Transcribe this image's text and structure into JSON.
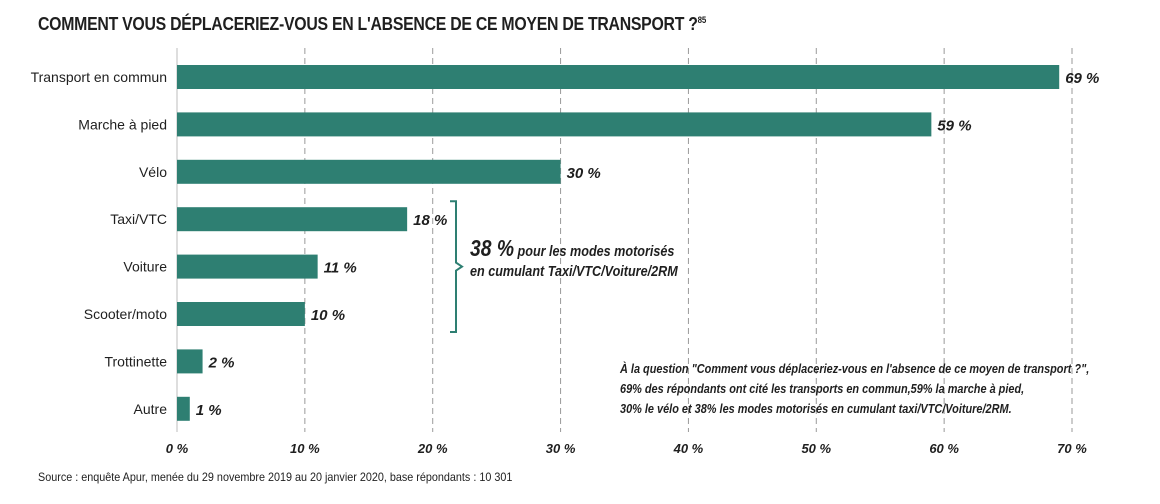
{
  "title": "COMMENT VOUS DÉPLACERIEZ-VOUS EN L'ABSENCE DE CE MOYEN DE TRANSPORT ?",
  "title_sup": "85",
  "callout": {
    "big": "38 %",
    "line1": "pour les modes motorisés",
    "line2": "en cumulant Taxi/VTC/Voiture/2RM"
  },
  "note": {
    "line1": "À la question \"Comment vous déplaceriez-vous en l'absence de ce moyen de transport ?\",",
    "line2": "69% des répondants ont cité les transports en commun,59% la marche à pied,",
    "line3": "30% le vélo et 38% les modes motorisés en cumulant taxi/VTC/Voiture/2RM."
  },
  "source": "Source : enquête Apur, menée du 29 novembre 2019 au 20 janvier 2020, base répondants : 10 301",
  "colors": {
    "bar": "#2e7f72",
    "grid": "#9a9a9a",
    "text": "#1f1f1f"
  },
  "chart_data": {
    "type": "bar",
    "orientation": "horizontal",
    "categories": [
      "Transport en commun",
      "Marche à pied",
      "Vélo",
      "Taxi/VTC",
      "Voiture",
      "Scooter/moto",
      "Trottinette",
      "Autre"
    ],
    "values": [
      69,
      59,
      30,
      18,
      11,
      10,
      2,
      1
    ],
    "value_labels": [
      "69 %",
      "59 %",
      "30 %",
      "18 %",
      "11 %",
      "10 %",
      "2 %",
      "1 %"
    ],
    "xlim": [
      0,
      70
    ],
    "xticks": [
      0,
      10,
      20,
      30,
      40,
      50,
      60,
      70
    ],
    "xtick_labels": [
      "0 %",
      "10 %",
      "20 %",
      "30 %",
      "40 %",
      "50 %",
      "60 %",
      "70 %"
    ],
    "grid": "vertical dashed",
    "bracket_categories": [
      "Taxi/VTC",
      "Voiture",
      "Scooter/moto"
    ]
  }
}
